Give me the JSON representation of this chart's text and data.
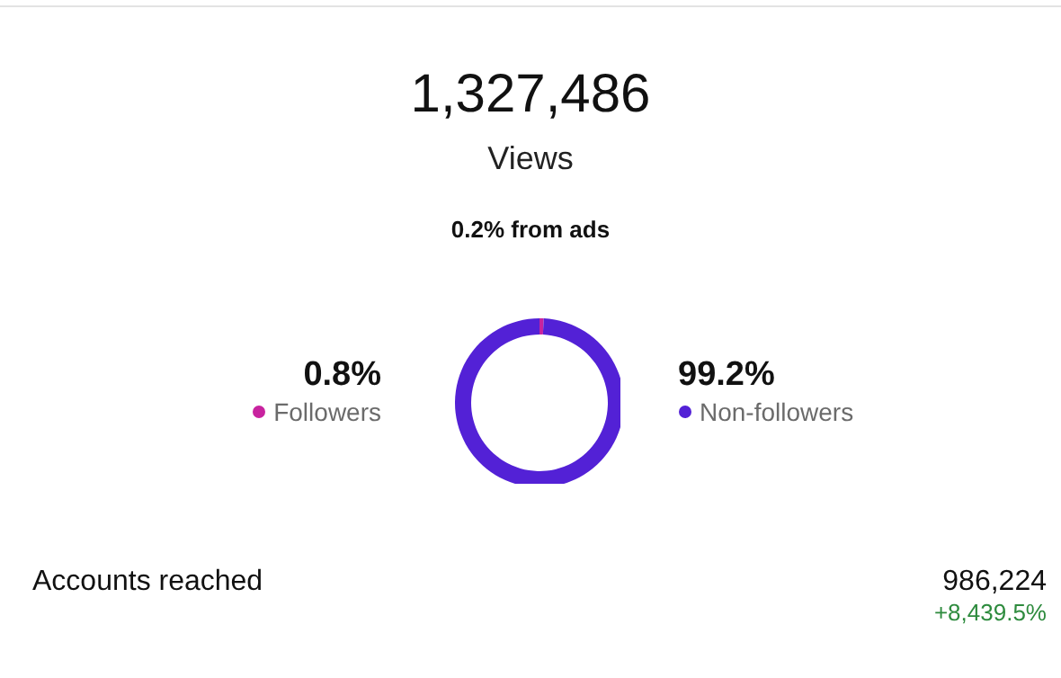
{
  "chart_data": {
    "type": "donut",
    "title": "1,327,486",
    "subtitle": "Views",
    "categories": [
      "Followers",
      "Non-followers"
    ],
    "values": [
      0.8,
      99.2
    ],
    "colors": [
      "#c8239f",
      "#5321d6"
    ],
    "legend": "bottom right",
    "value_labels": [
      "0.8%",
      "99.2%"
    ],
    "annotations": [
      "0.2% from ads",
      "Accounts reached",
      "986,224",
      "+8,439.5%"
    ]
  }
}
